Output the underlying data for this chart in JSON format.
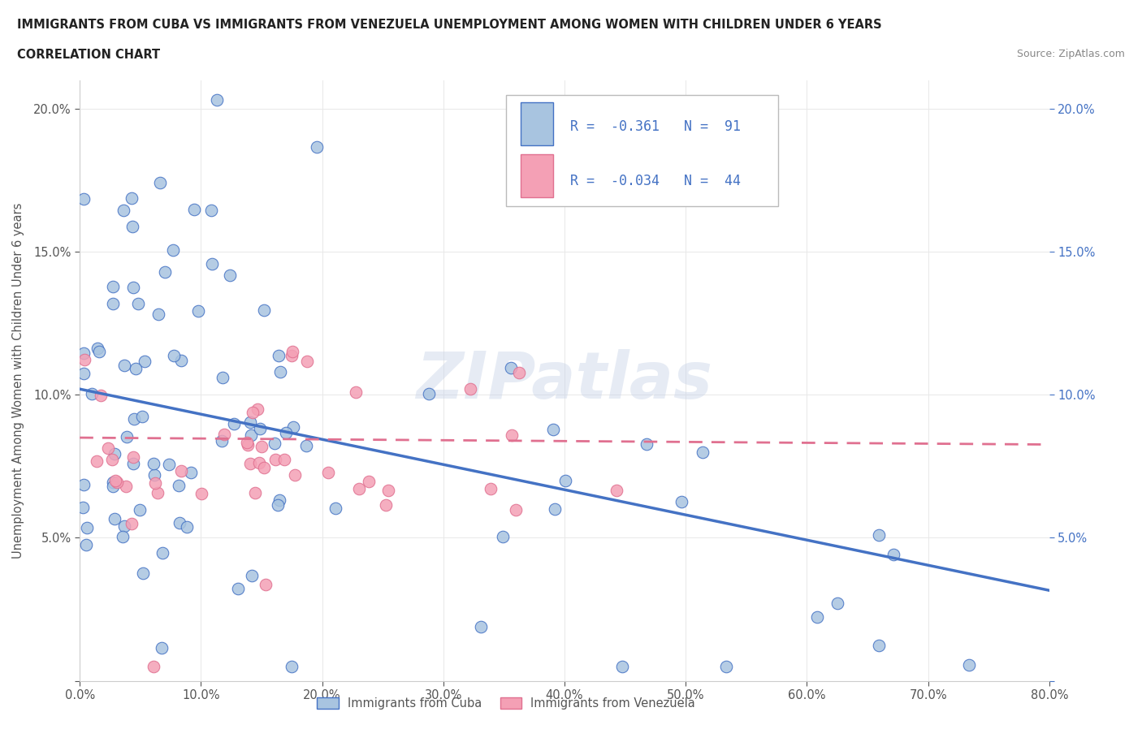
{
  "title_line1": "IMMIGRANTS FROM CUBA VS IMMIGRANTS FROM VENEZUELA UNEMPLOYMENT AMONG WOMEN WITH CHILDREN UNDER 6 YEARS",
  "title_line2": "CORRELATION CHART",
  "source": "Source: ZipAtlas.com",
  "ylabel": "Unemployment Among Women with Children Under 6 years",
  "xlim": [
    0.0,
    0.8
  ],
  "ylim": [
    0.0,
    0.21
  ],
  "cuba_color": "#a8c4e0",
  "cuba_edge_color": "#4472c4",
  "venezuela_color": "#f4a0b5",
  "venezuela_edge_color": "#e07090",
  "cuba_line_color": "#4472c4",
  "venezuela_line_color": "#e07090",
  "cuba_R": -0.361,
  "cuba_N": 91,
  "venezuela_R": -0.034,
  "venezuela_N": 44,
  "watermark": "ZIPatlas",
  "background_color": "#ffffff",
  "grid_color": "#e8e8e8",
  "right_tick_color": "#4472c4",
  "legend_label_cuba": "Immigrants from Cuba",
  "legend_label_venezuela": "Immigrants from Venezuela"
}
